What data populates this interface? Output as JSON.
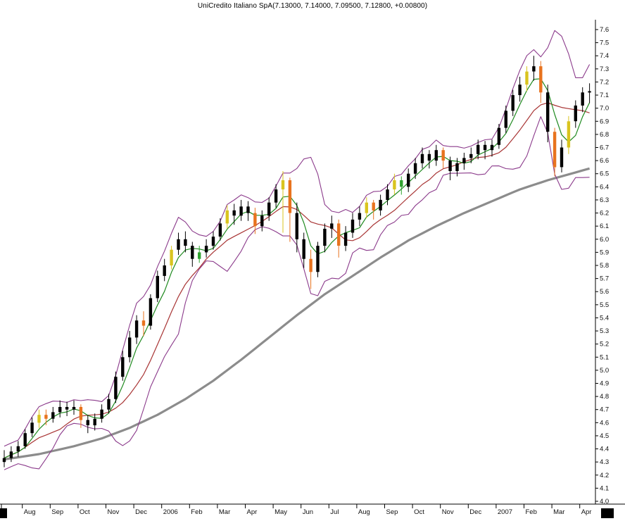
{
  "colors": {
    "background": "#ffffff",
    "axis": "#000000",
    "text": "#111111",
    "candle": "#000000",
    "candle_orange": "#e8731e",
    "candle_yellow": "#d9c41f",
    "candle_green": "#2fa32f",
    "ma_short": "#1f8a1f",
    "ma_medium": "#a83434",
    "band": "#8b3a8b",
    "ma_long": "#8c8c8c"
  },
  "chart_data": {
    "type": "candlestick",
    "title": "UniCredito Italiano SpA(7.13000, 7.14000, 7.09500, 7.12800, +0.00800)",
    "ohlc_last_quote": {
      "open": "7.13000",
      "high": "7.14000",
      "low": "7.09500",
      "close": "7.12800",
      "change": "+0.00800"
    },
    "ylim": [
      4.0,
      7.6
    ],
    "ytick_step": 0.1,
    "y_axis_side": "right",
    "grid": false,
    "legend": false,
    "y_tick_labels": [
      "7.6",
      "7.5",
      "7.4",
      "7.3",
      "7.2",
      "7.1",
      "7.0",
      "6.9",
      "6.8",
      "6.7",
      "6.6",
      "6.5",
      "6.4",
      "6.3",
      "6.2",
      "6.1",
      "6.0",
      "5.9",
      "5.8",
      "5.7",
      "5.6",
      "5.5",
      "5.4",
      "5.3",
      "5.2",
      "5.1",
      "5.0",
      "4.9",
      "4.8",
      "4.7",
      "4.6",
      "4.5",
      "4.4",
      "4.3",
      "4.2",
      "4.1",
      "4.0"
    ],
    "x_axis_months": [
      [
        "l",
        0
      ],
      [
        "Aug",
        3
      ],
      [
        "Sep",
        7
      ],
      [
        "Oct",
        11
      ],
      [
        "Nov",
        15
      ],
      [
        "Dec",
        19
      ],
      [
        "2006",
        23
      ],
      [
        "Feb",
        27
      ],
      [
        "Mar",
        31
      ],
      [
        "Apr",
        35
      ],
      [
        "May",
        39
      ],
      [
        "Jun",
        43
      ],
      [
        "Jul",
        47
      ],
      [
        "Aug",
        51
      ],
      [
        "Sep",
        55
      ],
      [
        "Oct",
        59
      ],
      [
        "Nov",
        63
      ],
      [
        "Dec",
        67
      ],
      [
        "2007",
        71
      ],
      [
        "Feb",
        75
      ],
      [
        "Mar",
        79
      ],
      [
        "Apr",
        83
      ]
    ],
    "series": [
      {
        "name": "price",
        "type": "candlestick",
        "color": "#000000"
      },
      {
        "name": "bollinger-upper",
        "type": "line",
        "color": "#8b3a8b"
      },
      {
        "name": "bollinger-lower",
        "type": "line",
        "color": "#8b3a8b"
      },
      {
        "name": "ma-short",
        "type": "line",
        "color": "#1f8a1f"
      },
      {
        "name": "ma-medium",
        "type": "line",
        "color": "#a83434"
      },
      {
        "name": "ma-long-200d",
        "type": "line",
        "color": "#8c8c8c"
      }
    ],
    "candle_color_key": {
      "0": "black",
      "1": "orange",
      "2": "yellow",
      "3": "green"
    },
    "ohlc": [
      [
        4.3,
        4.39,
        4.26,
        4.33
      ],
      [
        4.33,
        4.42,
        4.3,
        4.38
      ],
      [
        4.38,
        4.46,
        4.34,
        4.42
      ],
      [
        4.42,
        4.55,
        4.4,
        4.52
      ],
      [
        4.52,
        4.64,
        4.49,
        4.6
      ],
      [
        4.6,
        4.7,
        4.56,
        4.66,
        2
      ],
      [
        4.66,
        4.7,
        4.58,
        4.63,
        1
      ],
      [
        4.63,
        4.72,
        4.6,
        4.68
      ],
      [
        4.68,
        4.77,
        4.64,
        4.72
      ],
      [
        4.72,
        4.76,
        4.65,
        4.7
      ],
      [
        4.7,
        4.77,
        4.66,
        4.72
      ],
      [
        4.72,
        4.74,
        4.56,
        4.62,
        1
      ],
      [
        4.62,
        4.66,
        4.52,
        4.58
      ],
      [
        4.58,
        4.67,
        4.54,
        4.63
      ],
      [
        4.63,
        4.74,
        4.6,
        4.7
      ],
      [
        4.7,
        4.82,
        4.67,
        4.78
      ],
      [
        4.78,
        4.99,
        4.75,
        4.95
      ],
      [
        4.95,
        5.15,
        4.92,
        5.1
      ],
      [
        5.1,
        5.3,
        5.06,
        5.25
      ],
      [
        5.25,
        5.42,
        5.2,
        5.38
      ],
      [
        5.38,
        5.45,
        5.26,
        5.34,
        1
      ],
      [
        5.34,
        5.58,
        5.31,
        5.55
      ],
      [
        5.55,
        5.76,
        5.52,
        5.72
      ],
      [
        5.72,
        5.85,
        5.68,
        5.8
      ],
      [
        5.8,
        5.95,
        5.77,
        5.92,
        2
      ],
      [
        5.92,
        6.05,
        5.88,
        6.0
      ],
      [
        6.0,
        6.06,
        5.9,
        5.95
      ],
      [
        5.95,
        5.98,
        5.79,
        5.85
      ],
      [
        5.85,
        5.95,
        5.82,
        5.9,
        3
      ],
      [
        5.9,
        6.0,
        5.86,
        5.95
      ],
      [
        5.95,
        6.06,
        5.92,
        6.02
      ],
      [
        6.02,
        6.16,
        5.99,
        6.12
      ],
      [
        6.12,
        6.26,
        6.08,
        6.22,
        2
      ],
      [
        6.22,
        6.27,
        6.11,
        6.18
      ],
      [
        6.18,
        6.3,
        6.14,
        6.25
      ],
      [
        6.25,
        6.29,
        6.14,
        6.2
      ],
      [
        6.2,
        6.24,
        6.04,
        6.1,
        1
      ],
      [
        6.1,
        6.22,
        6.06,
        6.18
      ],
      [
        6.18,
        6.32,
        6.14,
        6.28
      ],
      [
        6.28,
        6.42,
        6.24,
        6.38
      ],
      [
        6.38,
        6.52,
        6.05,
        6.45,
        2
      ],
      [
        6.45,
        6.47,
        5.98,
        6.2,
        1
      ],
      [
        6.2,
        6.28,
        5.9,
        6.0
      ],
      [
        6.0,
        6.05,
        5.78,
        5.85
      ],
      [
        5.85,
        5.92,
        5.62,
        5.75,
        1
      ],
      [
        5.75,
        5.98,
        5.71,
        5.95
      ],
      [
        5.95,
        6.12,
        5.9,
        6.08
      ],
      [
        6.08,
        6.18,
        6.01,
        6.12
      ],
      [
        6.12,
        6.15,
        5.86,
        5.95,
        1
      ],
      [
        5.95,
        6.1,
        5.91,
        6.05
      ],
      [
        6.05,
        6.2,
        6.01,
        6.15
      ],
      [
        6.15,
        6.25,
        6.1,
        6.2
      ],
      [
        6.2,
        6.32,
        6.16,
        6.28,
        2
      ],
      [
        6.28,
        6.3,
        6.15,
        6.22,
        1
      ],
      [
        6.22,
        6.34,
        6.18,
        6.3
      ],
      [
        6.3,
        6.42,
        6.26,
        6.38
      ],
      [
        6.38,
        6.5,
        6.34,
        6.45,
        2
      ],
      [
        6.45,
        6.48,
        6.34,
        6.4,
        3
      ],
      [
        6.4,
        6.54,
        6.36,
        6.5
      ],
      [
        6.5,
        6.62,
        6.46,
        6.58
      ],
      [
        6.58,
        6.7,
        6.54,
        6.65
      ],
      [
        6.65,
        6.68,
        6.54,
        6.6
      ],
      [
        6.6,
        6.72,
        6.56,
        6.68
      ],
      [
        6.68,
        6.7,
        6.54,
        6.6,
        1
      ],
      [
        6.6,
        6.63,
        6.45,
        6.52
      ],
      [
        6.52,
        6.62,
        6.48,
        6.58
      ],
      [
        6.58,
        6.66,
        6.53,
        6.62
      ],
      [
        6.62,
        6.7,
        6.58,
        6.65
      ],
      [
        6.65,
        6.76,
        6.61,
        6.72
      ],
      [
        6.72,
        6.75,
        6.61,
        6.68
      ],
      [
        6.68,
        6.76,
        6.63,
        6.72
      ],
      [
        6.72,
        6.88,
        6.69,
        6.85
      ],
      [
        6.85,
        7.02,
        6.81,
        6.98
      ],
      [
        6.98,
        7.14,
        6.94,
        7.1
      ],
      [
        7.1,
        7.24,
        7.05,
        7.18
      ],
      [
        7.18,
        7.32,
        7.13,
        7.28,
        2
      ],
      [
        7.28,
        7.4,
        7.21,
        7.32
      ],
      [
        7.32,
        7.36,
        7.04,
        7.12,
        1
      ],
      [
        7.12,
        7.18,
        6.74,
        6.82
      ],
      [
        6.82,
        6.85,
        6.48,
        6.55,
        1
      ],
      [
        6.55,
        6.76,
        6.51,
        6.7
      ],
      [
        6.7,
        6.94,
        6.65,
        6.9,
        2
      ],
      [
        6.9,
        7.06,
        6.85,
        7.02
      ],
      [
        7.02,
        7.16,
        6.97,
        7.12
      ],
      [
        7.12,
        7.19,
        7.04,
        7.13
      ]
    ],
    "overlays": {
      "ma_short_window": 4,
      "ma_medium_window": 9,
      "band_window": 6,
      "band_sigma": 2,
      "ma_long_anchors": [
        [
          0,
          4.32
        ],
        [
          5,
          4.36
        ],
        [
          10,
          4.42
        ],
        [
          14,
          4.48
        ],
        [
          18,
          4.56
        ],
        [
          22,
          4.66
        ],
        [
          26,
          4.78
        ],
        [
          30,
          4.92
        ],
        [
          34,
          5.08
        ],
        [
          38,
          5.25
        ],
        [
          42,
          5.42
        ],
        [
          46,
          5.58
        ],
        [
          50,
          5.72
        ],
        [
          54,
          5.86
        ],
        [
          58,
          5.99
        ],
        [
          62,
          6.1
        ],
        [
          66,
          6.2
        ],
        [
          70,
          6.29
        ],
        [
          74,
          6.38
        ],
        [
          78,
          6.45
        ],
        [
          82,
          6.51
        ],
        [
          84,
          6.54
        ]
      ]
    }
  }
}
